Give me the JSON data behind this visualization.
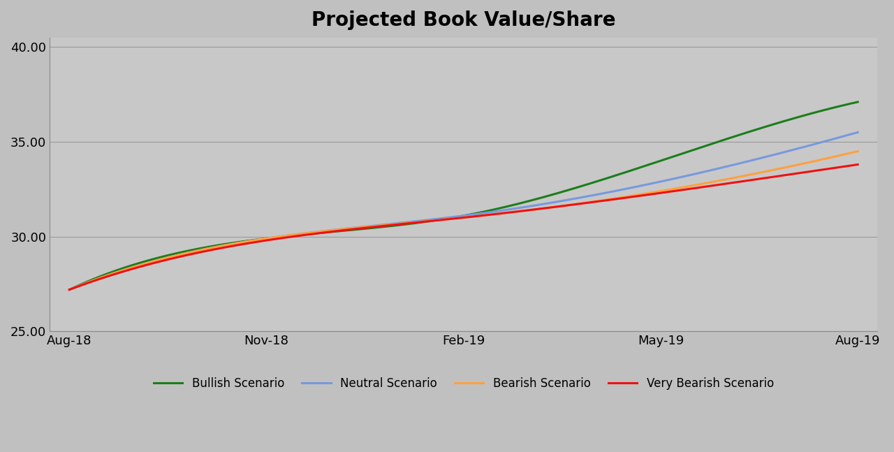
{
  "title": "Projected Book Value/Share",
  "title_fontsize": 20,
  "title_fontweight": "bold",
  "background_color": "#C0C0C0",
  "plot_area_color": "#C8C8C8",
  "x_labels": [
    "Aug-18",
    "Nov-18",
    "Feb-19",
    "May-19",
    "Aug-19"
  ],
  "x_positions": [
    0,
    3,
    6,
    9,
    12
  ],
  "ylim": [
    25.0,
    40.5
  ],
  "yticks": [
    25.0,
    30.0,
    35.0,
    40.0
  ],
  "series": [
    {
      "name": "Bullish Scenario",
      "color": "#1B7E1B",
      "linewidth": 2.2,
      "values": [
        27.2,
        29.9,
        31.1,
        34.0,
        37.1
      ]
    },
    {
      "name": "Neutral Scenario",
      "color": "#7799DD",
      "linewidth": 2.2,
      "values": [
        27.2,
        29.9,
        31.1,
        32.9,
        35.5
      ]
    },
    {
      "name": "Bearish Scenario",
      "color": "#FFA040",
      "linewidth": 2.2,
      "values": [
        27.2,
        29.9,
        31.0,
        32.4,
        34.5
      ]
    },
    {
      "name": "Very Bearish Scenario",
      "color": "#EE1111",
      "linewidth": 2.2,
      "values": [
        27.2,
        29.8,
        31.0,
        32.3,
        33.8
      ]
    }
  ],
  "grid_color": "#999999",
  "grid_linewidth": 0.8,
  "legend_fontsize": 12,
  "tick_fontsize": 13,
  "spine_color": "#888888"
}
